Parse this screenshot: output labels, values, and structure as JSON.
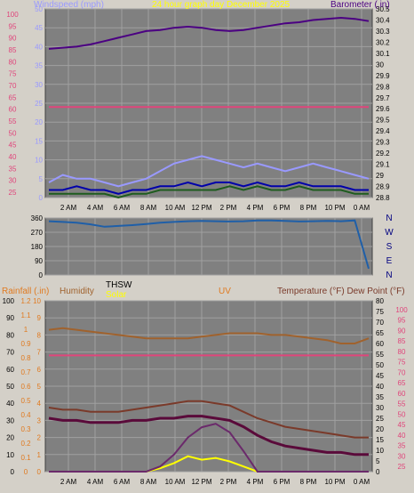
{
  "chart_data": [
    {
      "type": "line",
      "title": "24 hour graph day  December 2025",
      "left_axis_label": "Windspeed (mph)",
      "right_axis_label": "Barometer (.in)",
      "x_ticks": [
        "2 AM",
        "4 AM",
        "6 AM",
        "8 AM",
        "10 AM",
        "12 PM",
        "2 PM",
        "4 PM",
        "6 PM",
        "8 PM",
        "10 PM",
        "0 AM"
      ],
      "ylim_left": [
        0,
        50
      ],
      "ylim_right": [
        28.8,
        30.5
      ],
      "left_ticks": [
        0,
        5,
        10,
        15,
        20,
        25,
        30,
        35,
        40,
        45,
        50
      ],
      "right_ticks": [
        "28.8",
        "28.9",
        "29",
        "29.1",
        "29.2",
        "29.3",
        "29.4",
        "29.5",
        "29.6",
        "29.7",
        "29.8",
        "29.9",
        "30",
        "30.1",
        "30.2",
        "30.3",
        "30.4",
        "30.5"
      ],
      "pct_ticks": [
        25,
        30,
        35,
        40,
        45,
        50,
        55,
        60,
        65,
        70,
        75,
        80,
        85,
        90,
        95,
        100
      ],
      "series": [
        {
          "axis": "right",
          "color": "#4b0082",
          "values": [
            30.14,
            30.15,
            30.16,
            30.18,
            30.21,
            30.24,
            30.27,
            30.3,
            30.31,
            30.33,
            30.34,
            30.33,
            30.31,
            30.3,
            30.31,
            30.33,
            30.35,
            30.37,
            30.38,
            30.4,
            30.41,
            30.42,
            30.41,
            30.39
          ]
        },
        {
          "axis": "left",
          "color": "#e0457b",
          "values": [
            24,
            24,
            24,
            24,
            24,
            24,
            24,
            24,
            24,
            24,
            24,
            24,
            24,
            24,
            24,
            24,
            24,
            24,
            24,
            24,
            24,
            24,
            24,
            24
          ]
        },
        {
          "axis": "left",
          "color": "#9999ff",
          "values": [
            4,
            6,
            5,
            5,
            4,
            3,
            4,
            5,
            7,
            9,
            10,
            11,
            10,
            9,
            8,
            9,
            8,
            7,
            8,
            9,
            8,
            7,
            6,
            5
          ]
        },
        {
          "axis": "left",
          "color": "#0000aa",
          "values": [
            2,
            2,
            3,
            2,
            2,
            1,
            2,
            2,
            3,
            3,
            4,
            3,
            4,
            4,
            3,
            4,
            3,
            3,
            4,
            3,
            3,
            3,
            2,
            2
          ]
        },
        {
          "axis": "left",
          "color": "#1e5c1e",
          "values": [
            1,
            1,
            1,
            1,
            1,
            0,
            1,
            1,
            2,
            2,
            2,
            2,
            2,
            3,
            2,
            3,
            2,
            2,
            3,
            2,
            2,
            2,
            1,
            1
          ]
        }
      ]
    },
    {
      "type": "line",
      "right_axis_label": "N W S E N",
      "x_ticks": [
        "2 AM",
        "4 AM",
        "6 AM",
        "8 AM",
        "10 AM",
        "12 PM",
        "2 PM",
        "4 PM",
        "6 PM",
        "8 PM",
        "10 PM",
        "0 AM"
      ],
      "ylim": [
        0,
        360
      ],
      "left_ticks": [
        0,
        90,
        180,
        270,
        360
      ],
      "right_labels": [
        "N",
        "W",
        "S",
        "E",
        "N"
      ],
      "series": [
        {
          "color": "#1f5fa8",
          "values": [
            340,
            335,
            330,
            320,
            305,
            310,
            315,
            322,
            330,
            335,
            340,
            342,
            340,
            338,
            340,
            345,
            345,
            342,
            338,
            340,
            342,
            340,
            345,
            40
          ]
        }
      ]
    },
    {
      "type": "line",
      "header_labels": {
        "rainfall": "Rainfall (.in)",
        "humidity": "Humidity",
        "thsw": "THSW",
        "solar": "Solar",
        "uv": "UV",
        "temperature": "Temperature (°F) Dew Point (°F)"
      },
      "x_ticks": [
        "2 AM",
        "4 AM",
        "6 AM",
        "8 AM",
        "10 AM",
        "12 PM",
        "2 PM",
        "4 PM",
        "6 PM",
        "8 PM",
        "10 PM",
        "0 AM"
      ],
      "left_ticks": [
        0,
        10,
        20,
        30,
        40,
        50,
        60,
        70,
        80,
        90,
        100
      ],
      "rain_ticks": [
        "0",
        "0.1",
        "0.2",
        "0.3",
        "0.4",
        "0.5",
        "0.6",
        "0.7",
        "0.8",
        "0.9",
        "1",
        "1.1",
        "1.2"
      ],
      "uv_ticks": [
        0,
        1,
        2,
        3,
        4,
        5,
        6,
        7,
        8,
        9,
        10
      ],
      "temp_ticks": [
        0,
        5,
        10,
        15,
        20,
        25,
        30,
        35,
        40,
        45,
        50,
        55,
        60,
        65,
        70,
        75,
        80
      ],
      "pct_ticks": [
        25,
        30,
        35,
        40,
        45,
        50,
        55,
        60,
        65,
        70,
        75,
        80,
        85,
        90,
        95,
        100
      ],
      "ylim_left": [
        0,
        100
      ],
      "ylim_temp": [
        0,
        80
      ],
      "series": [
        {
          "name": "Humidity",
          "color": "#a0622d",
          "values": [
            83,
            84,
            83,
            82,
            81,
            80,
            79,
            78,
            78,
            78,
            78,
            79,
            80,
            81,
            81,
            81,
            80,
            80,
            79,
            78,
            77,
            75,
            75,
            78
          ]
        },
        {
          "color": "#e0457b",
          "values": [
            68,
            68,
            68,
            68,
            68,
            68,
            68,
            68,
            68,
            68,
            68,
            68,
            68,
            68,
            68,
            68,
            68,
            68,
            68,
            68,
            68,
            68,
            68,
            68
          ]
        },
        {
          "name": "Temperature",
          "color": "#7a3a2a",
          "values": [
            30,
            29,
            29,
            28,
            28,
            28,
            29,
            30,
            31,
            32,
            33,
            33,
            32,
            31,
            28,
            25,
            23,
            21,
            20,
            19,
            18,
            17,
            16,
            16
          ]
        },
        {
          "color": "#5a0a3a",
          "values": [
            25,
            24,
            24,
            23,
            23,
            23,
            24,
            24,
            25,
            25,
            26,
            26,
            25,
            24,
            21,
            17,
            14,
            12,
            11,
            10,
            9,
            9,
            8,
            8
          ]
        },
        {
          "name": "Solar",
          "color": "#ffff00",
          "values": [
            0,
            0,
            0,
            0,
            0,
            0,
            0,
            0,
            2,
            5,
            9,
            7,
            8,
            6,
            3,
            0,
            0,
            0,
            0,
            0,
            0,
            0,
            0,
            0
          ]
        },
        {
          "name": "UV",
          "color": "#6b2a6b",
          "values": [
            0,
            0,
            0,
            0,
            0,
            0,
            0,
            0,
            0.3,
            1,
            2,
            2.6,
            2.8,
            2.3,
            1.2,
            0,
            0,
            0,
            0,
            0,
            0,
            0,
            0,
            0
          ]
        }
      ]
    }
  ]
}
